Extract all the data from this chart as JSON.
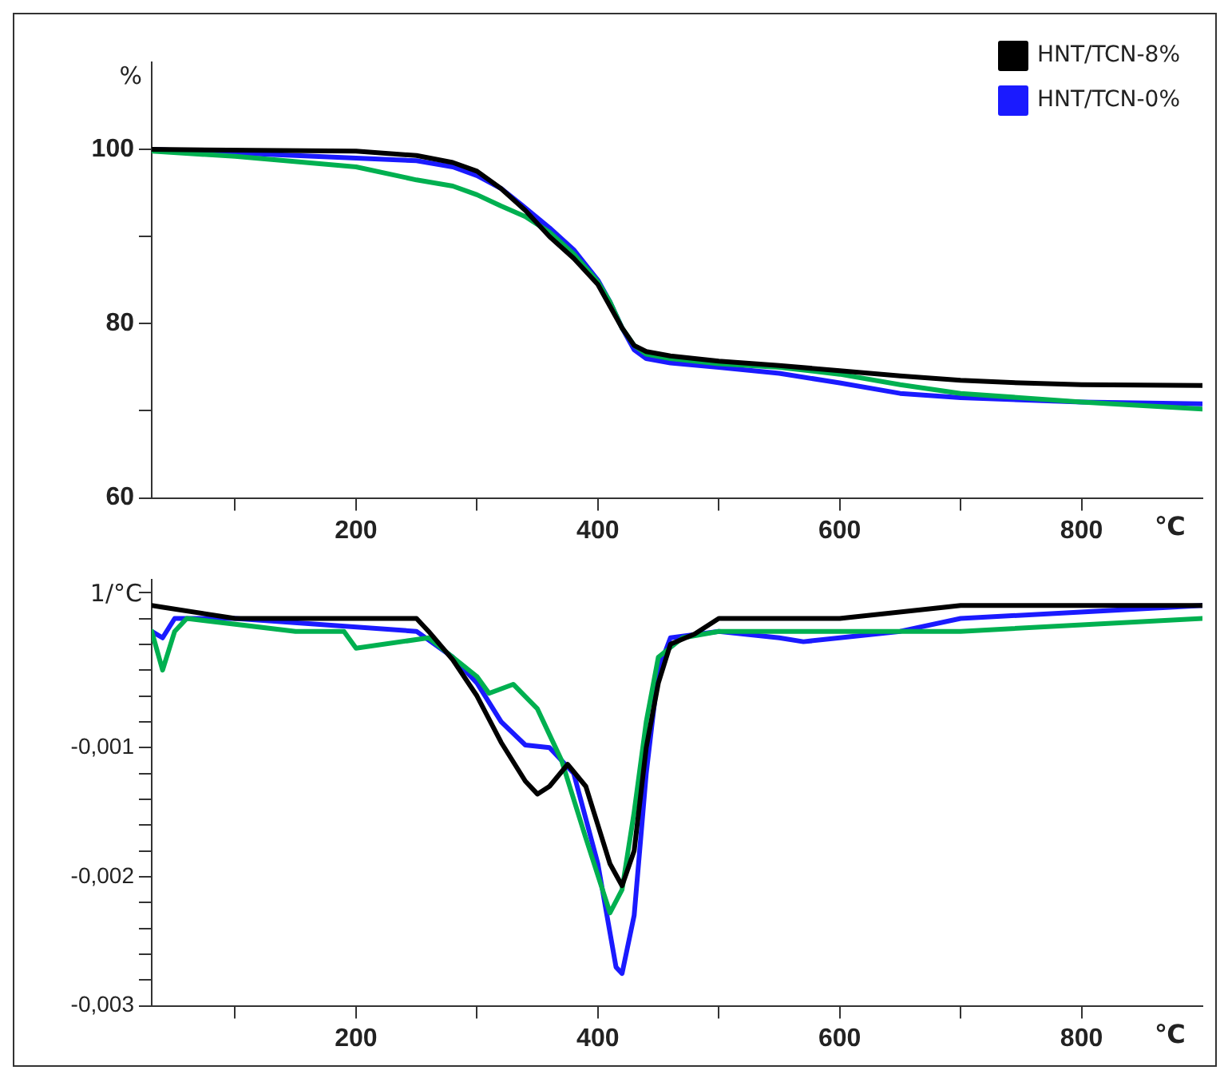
{
  "chart_data": [
    {
      "type": "line",
      "ylabel": "%",
      "xlabel": "℃",
      "xlim": [
        31,
        900
      ],
      "ylim": [
        60,
        110
      ],
      "xticks": [
        {
          "value": 100,
          "label": null
        },
        200,
        {
          "value": 300,
          "label": null
        },
        400,
        {
          "value": 500,
          "label": null
        },
        600,
        {
          "value": 700,
          "label": null
        },
        800
      ],
      "yticks": [
        60,
        {
          "value": 70,
          "label": null
        },
        80,
        {
          "value": 90,
          "label": null
        },
        100
      ],
      "grid": false,
      "legend": "top right",
      "marker": "none",
      "line_style": "solid",
      "series": [
        {
          "name": "HNT/TCN-8%",
          "color": "#000000",
          "x": [
            31,
            200,
            250,
            280,
            300,
            320,
            340,
            360,
            380,
            400,
            410,
            420,
            430,
            440,
            460,
            500,
            550,
            600,
            650,
            700,
            750,
            800,
            900
          ],
          "values": [
            100,
            99.8,
            99.3,
            98.5,
            97.5,
            95.5,
            93,
            90,
            87.5,
            84.5,
            82,
            79.5,
            77.5,
            76.8,
            76.3,
            75.7,
            75.2,
            74.6,
            74,
            73.5,
            73.2,
            73,
            72.9
          ]
        },
        {
          "color": "#00b050",
          "x": [
            31,
            100,
            200,
            250,
            280,
            300,
            320,
            340,
            360,
            380,
            400,
            410,
            420,
            430,
            440,
            460,
            500,
            550,
            600,
            650,
            700,
            800,
            900
          ],
          "values": [
            99.8,
            99.2,
            98,
            96.5,
            95.8,
            94.8,
            93.5,
            92.3,
            90.5,
            88,
            84.8,
            82.5,
            79.5,
            77.5,
            76.5,
            76,
            75.4,
            75,
            74.2,
            73,
            72,
            71,
            70.2
          ]
        },
        {
          "name": "HNT/TCN-0%",
          "color": "#1a1aff",
          "x": [
            31,
            200,
            250,
            280,
            300,
            320,
            340,
            360,
            380,
            400,
            410,
            420,
            430,
            440,
            460,
            500,
            550,
            600,
            650,
            700,
            800,
            900
          ],
          "values": [
            100,
            99,
            98.7,
            98,
            97,
            95.5,
            93.3,
            91,
            88.5,
            85,
            82.5,
            79.5,
            77,
            76,
            75.5,
            75,
            74.3,
            73.2,
            72,
            71.5,
            71,
            70.8
          ]
        }
      ]
    },
    {
      "type": "line",
      "ylabel": "1/°C",
      "xlabel": "℃",
      "xlim": [
        31,
        900
      ],
      "ylim": [
        -0.003,
        0.0003
      ],
      "xticks": [
        {
          "value": 100,
          "label": null
        },
        200,
        {
          "value": 300,
          "label": null
        },
        400,
        {
          "value": 500,
          "label": null
        },
        600,
        {
          "value": 700,
          "label": null
        },
        800
      ],
      "yticks": [
        {
          "value": -0.003,
          "label": "-0,003"
        },
        {
          "value": -0.0028,
          "label": null
        },
        {
          "value": -0.0026,
          "label": null
        },
        {
          "value": -0.0024,
          "label": null
        },
        {
          "value": -0.0022,
          "label": null
        },
        {
          "value": -0.002,
          "label": "-0,002"
        },
        {
          "value": -0.0018,
          "label": null
        },
        {
          "value": -0.0016,
          "label": null
        },
        {
          "value": -0.0014,
          "label": null
        },
        {
          "value": -0.0012,
          "label": null
        },
        {
          "value": -0.001,
          "label": "-0,001"
        },
        {
          "value": -0.0008,
          "label": null
        },
        {
          "value": -0.0006,
          "label": null
        },
        {
          "value": -0.0004,
          "label": null
        },
        {
          "value": -0.0002,
          "label": null
        },
        {
          "value": 0,
          "label": null
        },
        {
          "value": 0.0002,
          "label": null
        }
      ],
      "grid": false,
      "legend": false,
      "marker": "none",
      "line_style": "solid",
      "series": [
        {
          "color": "#000000",
          "x": [
            31,
            100,
            250,
            260,
            280,
            300,
            320,
            340,
            350,
            360,
            375,
            390,
            400,
            410,
            420,
            430,
            440,
            450,
            460,
            480,
            500,
            520,
            600,
            700,
            900
          ],
          "values": [
            0.0001,
            0,
            0,
            -0.0001,
            -0.00032,
            -0.0006,
            -0.00096,
            -0.00126,
            -0.00136,
            -0.0013,
            -0.00113,
            -0.0013,
            -0.0016,
            -0.0019,
            -0.00207,
            -0.0018,
            -0.001,
            -0.0005,
            -0.0002,
            -0.00012,
            0,
            0,
            0,
            0.0001,
            0.0001
          ]
        },
        {
          "color": "#00b050",
          "x": [
            31,
            40,
            50,
            60,
            150,
            190,
            200,
            260,
            280,
            300,
            310,
            330,
            350,
            370,
            390,
            410,
            420,
            430,
            440,
            450,
            470,
            500,
            600,
            700,
            900
          ],
          "values": [
            -0.0001,
            -0.0004,
            -0.0001,
            0,
            -0.0001,
            -0.0001,
            -0.00023,
            -0.00015,
            -0.0003,
            -0.00045,
            -0.00058,
            -0.00051,
            -0.0007,
            -0.0011,
            -0.0017,
            -0.00228,
            -0.0021,
            -0.0015,
            -0.0008,
            -0.0003,
            -0.00015,
            -0.0001,
            -0.0001,
            -0.0001,
            0
          ]
        },
        {
          "color": "#1a1aff",
          "x": [
            31,
            40,
            50,
            100,
            250,
            280,
            300,
            320,
            340,
            360,
            380,
            400,
            415,
            420,
            430,
            440,
            450,
            460,
            500,
            550,
            570,
            600,
            650,
            700,
            900
          ],
          "values": [
            -0.0001,
            -0.00015,
            0,
            0,
            -0.0001,
            -0.0003,
            -0.0005,
            -0.0008,
            -0.00098,
            -0.001,
            -0.0012,
            -0.0019,
            -0.0027,
            -0.00275,
            -0.0023,
            -0.0012,
            -0.0004,
            -0.00015,
            -0.0001,
            -0.00015,
            -0.00018,
            -0.00015,
            -0.0001,
            0,
            0.0001
          ]
        }
      ]
    }
  ]
}
